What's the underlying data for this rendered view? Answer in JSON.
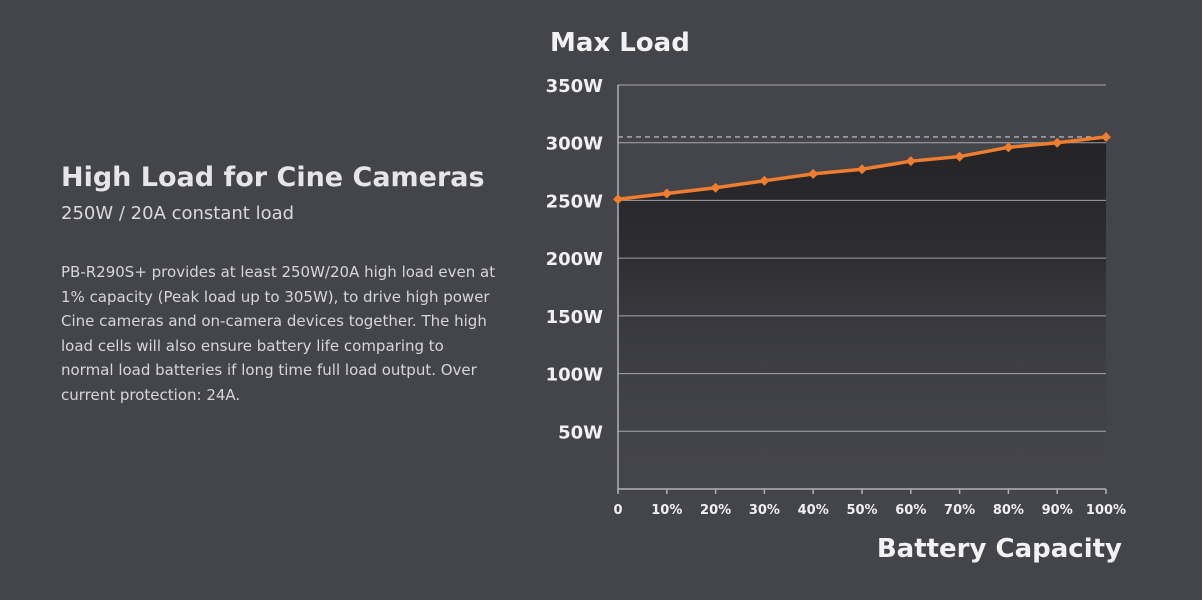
{
  "headline": "High Load for Cine Cameras",
  "subheadline": "250W / 20A constant load",
  "description": "PB-R290S+ provides at least 250W/20A high load even at 1% capacity (Peak load up to 305W), to drive high power Cine cameras and on-camera devices together. The high load cells will also ensure battery life comparing to normal load batteries if long time full load output. Over current protection: 24A.",
  "chart_data": {
    "type": "line",
    "title": "Max Load",
    "xlabel": "Battery Capacity",
    "ylabel": "",
    "x": [
      0,
      10,
      20,
      30,
      40,
      50,
      60,
      70,
      80,
      90,
      100
    ],
    "x_tick_labels": [
      "0",
      "10%",
      "20%",
      "30%",
      "40%",
      "50%",
      "60%",
      "70%",
      "80%",
      "90%",
      "100%"
    ],
    "y_ticks": [
      50,
      100,
      150,
      200,
      250,
      300,
      350
    ],
    "y_tick_labels": [
      "50W",
      "100W",
      "150W",
      "200W",
      "250W",
      "300W",
      "350W"
    ],
    "ylim": [
      0,
      350
    ],
    "xlim": [
      0,
      100
    ],
    "grid": true,
    "reference_line": {
      "y": 305,
      "style": "dashed"
    },
    "series": [
      {
        "values": [
          251,
          256,
          261,
          267,
          273,
          277,
          284,
          288,
          296,
          300,
          305
        ]
      }
    ],
    "colors": {
      "line": "#ef7d30",
      "marker": "#ef7d30",
      "grid": "#c8c8cc",
      "axis": "#b0b0b5",
      "background": "#44454b"
    }
  }
}
